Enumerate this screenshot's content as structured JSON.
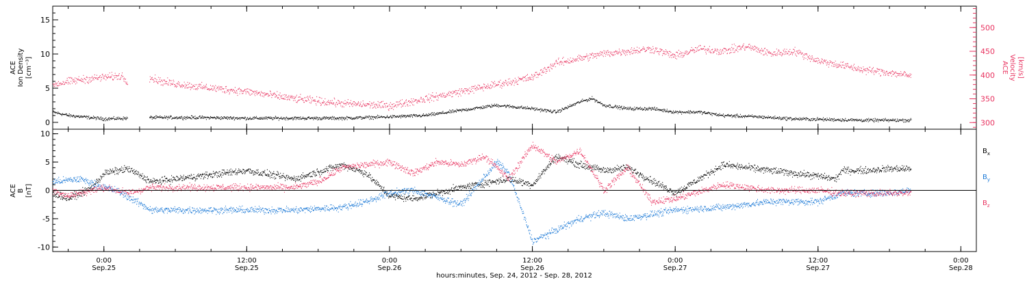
{
  "colors": {
    "black": "#000000",
    "pink": "#e8325f",
    "blue": "#1a78d6",
    "frame": "#000000"
  },
  "x_axis": {
    "title": "hours:minutes, Sep. 24, 2012 - Sep. 28, 2012",
    "ticks": [
      {
        "time": "0:00",
        "date": "Sep.25",
        "hour": 0
      },
      {
        "time": "12:00",
        "date": "Sep.25",
        "hour": 12
      },
      {
        "time": "0:00",
        "date": "Sep.26",
        "hour": 24
      },
      {
        "time": "12:00",
        "date": "Sep.26",
        "hour": 36
      },
      {
        "time": "0:00",
        "date": "Sep.27",
        "hour": 48
      },
      {
        "time": "12:00",
        "date": "Sep.27",
        "hour": 60
      },
      {
        "time": "0:00",
        "date": "Sep.28",
        "hour": 72
      }
    ],
    "range_hours": [
      -4.3,
      73.3
    ],
    "data_end_hour": 67.8
  },
  "chart_data": [
    {
      "type": "scatter",
      "ylabel_left": [
        "ACE",
        "Ion Density",
        "[cm⁻³]"
      ],
      "ylabel_right": [
        "ACE",
        "Velocity",
        "[km/s]"
      ],
      "ylim_left": [
        -1,
        17
      ],
      "ylim_right": [
        286,
        545
      ],
      "yticks_left": [
        0,
        5,
        10,
        15
      ],
      "yticks_right": [
        300,
        350,
        400,
        450,
        500
      ],
      "series": [
        {
          "axis": "left",
          "color": "black",
          "gaps": [
            [
              2.0,
              3.8
            ]
          ],
          "x": [
            -4.3,
            -3,
            0,
            4,
            8,
            12,
            16,
            20,
            24,
            27,
            29,
            31,
            33,
            36,
            38,
            40,
            41,
            42,
            44,
            46,
            48,
            50,
            52,
            55,
            58,
            61,
            64,
            67.8
          ],
          "y": [
            1.5,
            1.0,
            0.5,
            0.7,
            0.7,
            0.6,
            0.6,
            0.6,
            0.8,
            1.0,
            1.5,
            2.0,
            2.5,
            2.0,
            1.5,
            3.0,
            3.5,
            2.5,
            2.0,
            2.0,
            1.5,
            1.5,
            1.0,
            0.8,
            0.5,
            0.4,
            0.3,
            0.3
          ]
        },
        {
          "axis": "right",
          "color": "pink",
          "gaps": [
            [
              2.0,
              3.8
            ]
          ],
          "x": [
            -4.3,
            -2,
            0,
            1.5,
            2.0,
            3.8,
            5,
            8,
            12,
            16,
            20,
            24,
            26,
            28,
            30,
            32,
            34,
            36,
            37,
            38,
            40,
            42,
            44,
            46,
            48,
            50,
            52,
            54,
            56,
            58,
            60,
            62,
            64,
            66,
            67.8
          ],
          "y": [
            380,
            390,
            395,
            398,
            385,
            395,
            385,
            375,
            365,
            350,
            340,
            335,
            345,
            355,
            365,
            375,
            385,
            395,
            410,
            425,
            435,
            445,
            450,
            455,
            440,
            455,
            450,
            460,
            445,
            450,
            430,
            420,
            410,
            405,
            398
          ]
        }
      ]
    },
    {
      "type": "scatter",
      "ylabel_left": [
        "ACE",
        "B",
        "[nT]"
      ],
      "ylim": [
        -10.8,
        10.8
      ],
      "yticks": [
        -10,
        -5,
        0,
        5,
        10
      ],
      "zero_line": true,
      "series": [
        {
          "name": "Bx",
          "color": "black",
          "x": [
            -4.3,
            -3,
            -1,
            0,
            2,
            4,
            8,
            12,
            16,
            20,
            22,
            24,
            26,
            30,
            34,
            36,
            38,
            40,
            42,
            44,
            48,
            52,
            56,
            58,
            60,
            61.5,
            62,
            64,
            66,
            67.8
          ],
          "y": [
            -0.5,
            -1.5,
            0.5,
            3.0,
            3.8,
            1.5,
            2.5,
            3.5,
            2.0,
            4.5,
            3.0,
            -1.0,
            -1.5,
            0.5,
            2.0,
            1.0,
            6.0,
            4.5,
            3.5,
            4.0,
            -0.5,
            4.5,
            3.5,
            3.0,
            2.5,
            2.0,
            3.5,
            3.5,
            3.8,
            3.8
          ]
        },
        {
          "name": "By",
          "color": "blue",
          "x": [
            -4.3,
            -2,
            0,
            1,
            4,
            8,
            12,
            16,
            20,
            22,
            24,
            26,
            30,
            33,
            34,
            36,
            38,
            40,
            42,
            44,
            48,
            52,
            56,
            60,
            62,
            66,
            67.8
          ],
          "y": [
            1.5,
            2.0,
            0.5,
            0.0,
            -3.5,
            -3.5,
            -3.5,
            -3.5,
            -3.0,
            -2.0,
            -0.5,
            0.0,
            -2.5,
            5.0,
            3.0,
            -9.0,
            -7.0,
            -5.0,
            -4.0,
            -5.0,
            -3.5,
            -3.0,
            -2.0,
            -2.0,
            -0.5,
            -0.5,
            0.0
          ]
        },
        {
          "name": "Bz",
          "color": "pink",
          "x": [
            -4.3,
            -3,
            -1,
            0,
            2,
            4,
            8,
            12,
            16,
            18,
            20,
            22,
            24,
            26,
            28,
            30,
            32,
            34,
            36,
            38,
            40,
            42,
            44,
            46,
            48,
            52,
            56,
            60,
            62,
            64,
            66,
            67.8
          ],
          "y": [
            0.0,
            -1.0,
            0.0,
            0.5,
            -0.5,
            0.5,
            0.5,
            0.5,
            0.5,
            1.5,
            4.0,
            4.5,
            5.0,
            3.0,
            5.0,
            4.5,
            6.0,
            2.0,
            8.0,
            5.0,
            7.0,
            0.0,
            4.0,
            -2.0,
            -1.5,
            1.0,
            0.0,
            0.0,
            -0.5,
            -0.5,
            -0.5,
            -0.5
          ]
        }
      ]
    }
  ]
}
